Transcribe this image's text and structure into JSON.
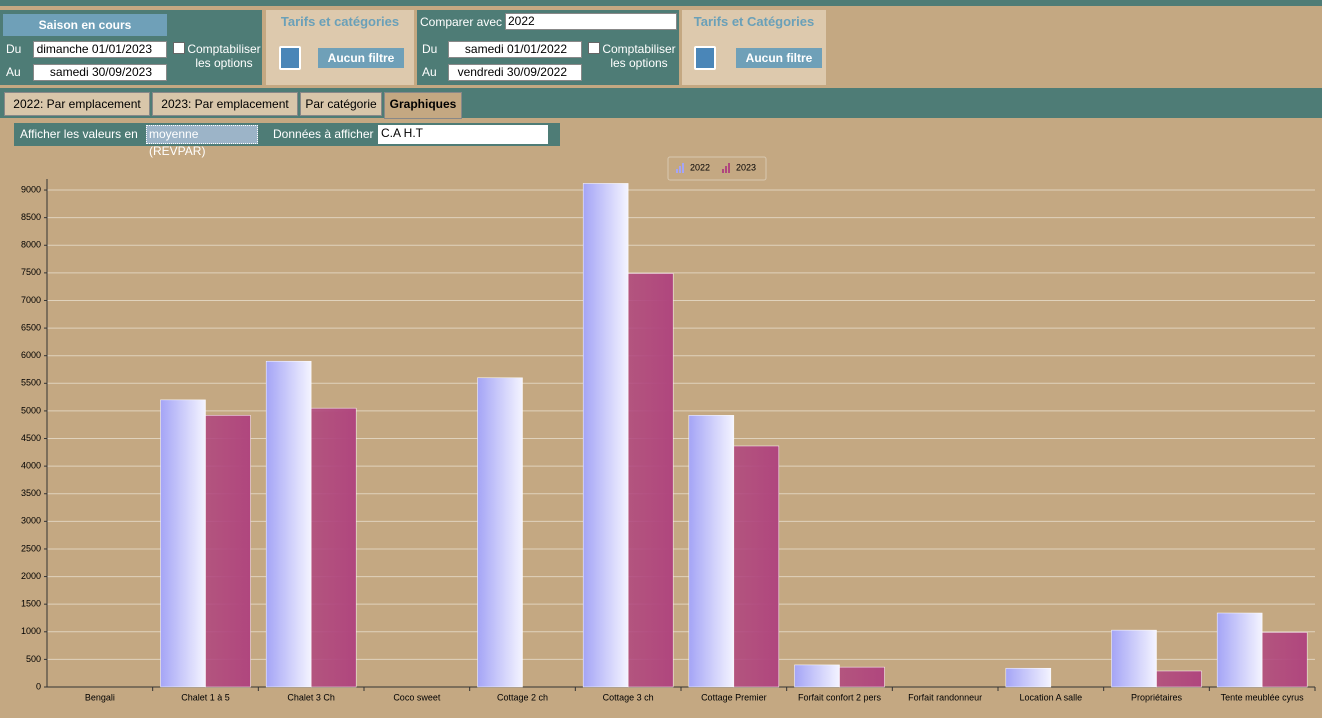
{
  "header": {
    "current": {
      "title": "Saison en cours",
      "from_label": "Du",
      "from": "dimanche 01/01/2023",
      "to_label": "Au",
      "to": "samedi 30/09/2023",
      "options": "Comptabiliser les options"
    },
    "current_tariffs": {
      "title": "Tarifs et catégories",
      "filter": "Aucun filtre"
    },
    "compare": {
      "label": "Comparer avec",
      "year": "2022",
      "from_label": "Du",
      "from": "samedi 01/01/2022",
      "to_label": "Au",
      "to": "vendredi 30/09/2022",
      "options": "Comptabiliser les options"
    },
    "compare_tariffs": {
      "title": "Tarifs et Catégories",
      "filter": "Aucun filtre"
    }
  },
  "tabs": [
    "2022: Par emplacement",
    "2023: Par emplacement",
    "Par catégorie",
    "Graphiques"
  ],
  "filters": {
    "values_label": "Afficher les valeurs en",
    "values_mode": "moyenne (REVPAR)",
    "data_label": "Données à afficher",
    "data": "C.A H.T"
  },
  "chart_data": {
    "type": "bar",
    "categories": [
      "Bengali",
      "Chalet 1 à 5",
      "Chalet 3 Ch",
      "Coco sweet",
      "Cottage 2 ch",
      "Cottage 3 ch",
      "Cottage Premier",
      "Forfait confort 2 pers",
      "Forfait randonneur",
      "Location  A salle",
      "Propriétaires",
      "Tente meublée cyrus"
    ],
    "series": [
      {
        "name": "2022",
        "color": "#a4a4f6",
        "values": [
          0,
          5200,
          5900,
          0,
          5600,
          9120,
          4920,
          400,
          0,
          340,
          1030,
          1340
        ]
      },
      {
        "name": "2023",
        "color": "#b0467e",
        "values": [
          0,
          4920,
          5050,
          0,
          0,
          7490,
          4365,
          360,
          0,
          0,
          290,
          990
        ]
      }
    ],
    "ylim": [
      0,
      9200
    ],
    "yticks": [
      0,
      500,
      1000,
      1500,
      2000,
      2500,
      3000,
      3500,
      4000,
      4500,
      5000,
      5500,
      6000,
      6500,
      7000,
      7500,
      8000,
      8500,
      9000
    ],
    "grid": true,
    "legend": "top"
  }
}
